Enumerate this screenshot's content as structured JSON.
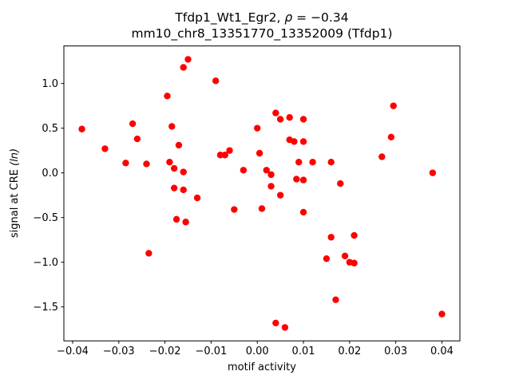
{
  "figure": {
    "title_line1_prefix": "Tfdp1_Wt1_Egr2, ",
    "title_line1_rho": "ρ",
    "title_line1_eq": " = −0.34",
    "title_line2": "mm10_chr8_13351770_13352009 (Tfdp1)",
    "xlabel": "motif activity",
    "ylabel_prefix": "signal at CRE ",
    "ylabel_math": "(ln)"
  },
  "chart_data": {
    "type": "scatter",
    "title": "Tfdp1_Wt1_Egr2, ρ = −0.34\nmm10_chr8_13351770_13352009 (Tfdp1)",
    "xlabel": "motif activity",
    "ylabel": "signal at CRE (ln)",
    "legend": "none",
    "grid": false,
    "marker_color": "#ff0000",
    "marker_radius_px": 4.2,
    "xlim": [
      -0.0419,
      0.0439
    ],
    "ylim": [
      -1.88,
      1.42
    ],
    "xticks": [
      -0.04,
      -0.03,
      -0.02,
      -0.01,
      0.0,
      0.01,
      0.02,
      0.03,
      0.04
    ],
    "xtick_labels": [
      "−0.04",
      "−0.03",
      "−0.02",
      "−0.01",
      "0.00",
      "0.01",
      "0.02",
      "0.03",
      "0.04"
    ],
    "yticks": [
      -1.5,
      -1.0,
      -0.5,
      0.0,
      0.5,
      1.0
    ],
    "ytick_labels": [
      "−1.5",
      "−1.0",
      "−0.5",
      "0.0",
      "0.5",
      "1.0"
    ],
    "points": [
      [
        -0.038,
        0.49
      ],
      [
        -0.033,
        0.27
      ],
      [
        -0.0285,
        0.11
      ],
      [
        -0.027,
        0.55
      ],
      [
        -0.026,
        0.38
      ],
      [
        -0.024,
        0.1
      ],
      [
        -0.0235,
        -0.9
      ],
      [
        -0.0195,
        0.86
      ],
      [
        -0.019,
        0.12
      ],
      [
        -0.0185,
        0.52
      ],
      [
        -0.018,
        0.05
      ],
      [
        -0.018,
        -0.17
      ],
      [
        -0.0175,
        -0.52
      ],
      [
        -0.017,
        0.31
      ],
      [
        -0.016,
        1.18
      ],
      [
        -0.016,
        0.01
      ],
      [
        -0.016,
        -0.19
      ],
      [
        -0.0155,
        -0.55
      ],
      [
        -0.015,
        1.27
      ],
      [
        -0.013,
        -0.28
      ],
      [
        -0.009,
        1.03
      ],
      [
        -0.008,
        0.2
      ],
      [
        -0.007,
        0.2
      ],
      [
        -0.006,
        0.25
      ],
      [
        -0.005,
        -0.41
      ],
      [
        -0.003,
        0.03
      ],
      [
        0.0,
        0.5
      ],
      [
        0.0005,
        0.22
      ],
      [
        0.001,
        -0.4
      ],
      [
        0.002,
        0.03
      ],
      [
        0.003,
        -0.02
      ],
      [
        0.003,
        -0.15
      ],
      [
        0.004,
        0.67
      ],
      [
        0.004,
        -1.68
      ],
      [
        0.005,
        0.6
      ],
      [
        0.005,
        -0.25
      ],
      [
        0.006,
        -1.73
      ],
      [
        0.007,
        0.62
      ],
      [
        0.007,
        0.37
      ],
      [
        0.008,
        0.35
      ],
      [
        0.0085,
        -0.07
      ],
      [
        0.009,
        0.12
      ],
      [
        0.01,
        0.6
      ],
      [
        0.01,
        0.35
      ],
      [
        0.01,
        -0.08
      ],
      [
        0.01,
        -0.44
      ],
      [
        0.012,
        0.12
      ],
      [
        0.016,
        0.12
      ],
      [
        0.015,
        -0.96
      ],
      [
        0.016,
        -0.72
      ],
      [
        0.017,
        -1.42
      ],
      [
        0.018,
        -0.12
      ],
      [
        0.019,
        -0.93
      ],
      [
        0.02,
        -1.0
      ],
      [
        0.021,
        -1.01
      ],
      [
        0.021,
        -0.7
      ],
      [
        0.027,
        0.18
      ],
      [
        0.029,
        0.4
      ],
      [
        0.0295,
        0.75
      ],
      [
        0.038,
        0.0
      ],
      [
        0.04,
        -1.58
      ]
    ]
  }
}
